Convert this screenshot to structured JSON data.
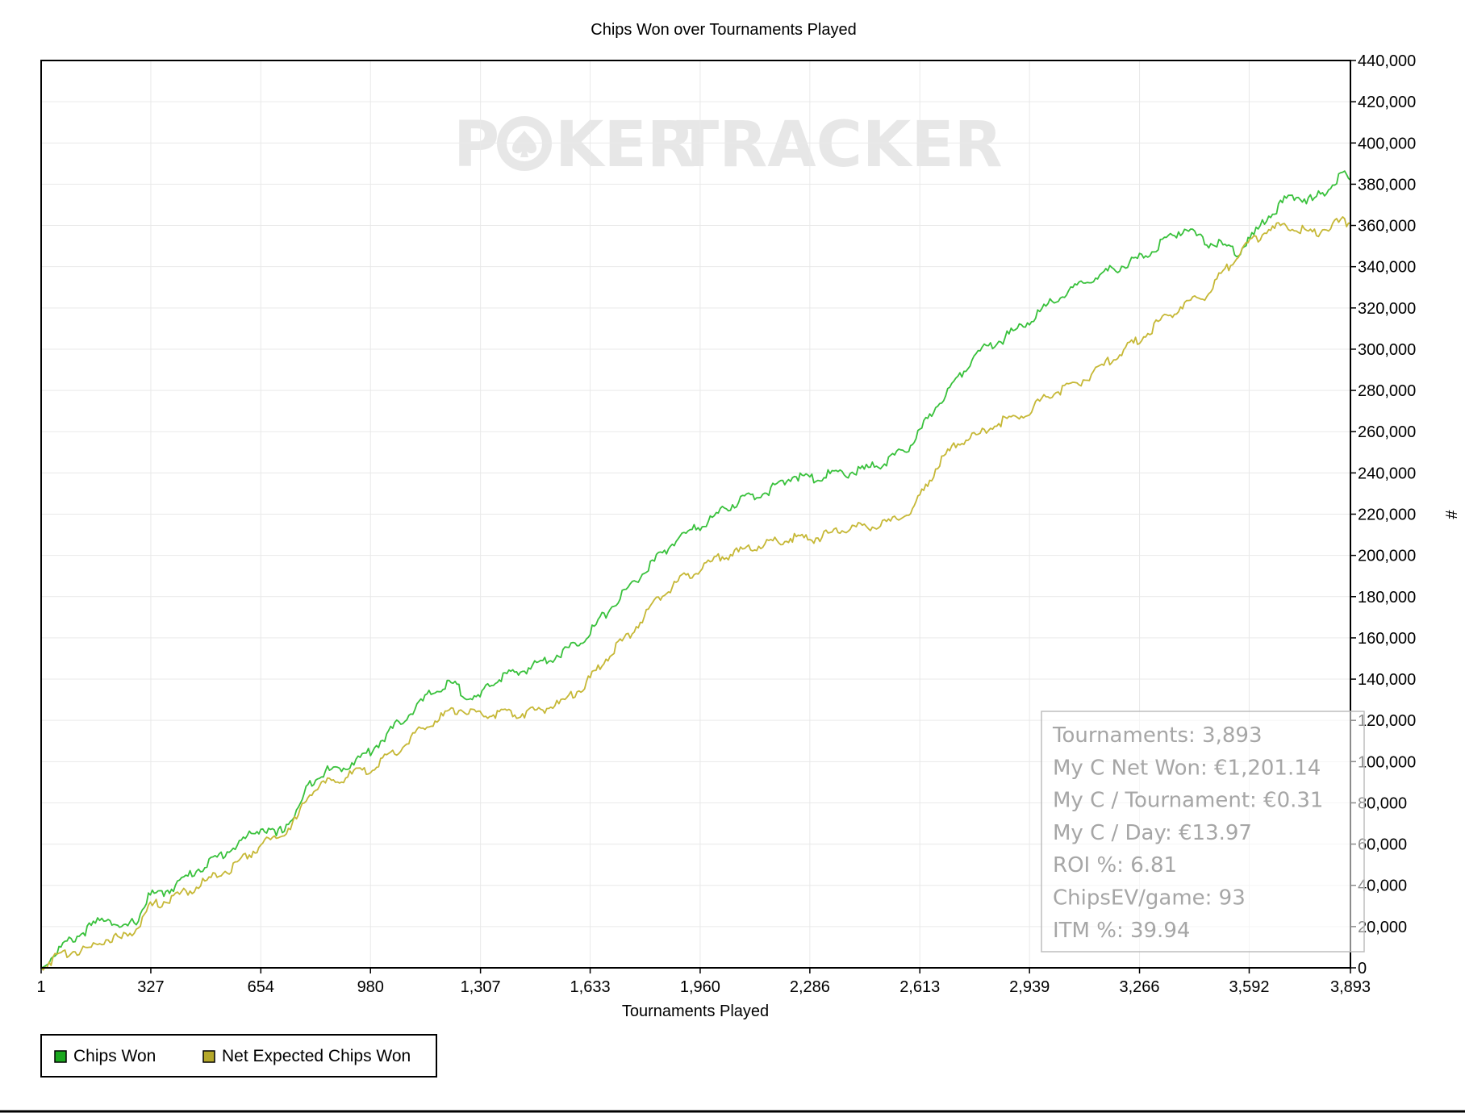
{
  "watermark": {
    "left": "P",
    "mid": "KER",
    "right": "TRACKER"
  },
  "chart_data": {
    "type": "line",
    "title": "Chips Won over Tournaments Played",
    "xlabel": "Tournaments Played",
    "ylabel": "#",
    "xlim": [
      1,
      3893
    ],
    "ylim": [
      0,
      440000
    ],
    "x_ticks": [
      1,
      327,
      654,
      980,
      1307,
      1633,
      1960,
      2286,
      2613,
      2939,
      3266,
      3592,
      3893
    ],
    "x_tick_labels": [
      "1",
      "327",
      "654",
      "980",
      "1,307",
      "1,633",
      "1,960",
      "2,286",
      "2,613",
      "2,939",
      "3,266",
      "3,592",
      "3,893"
    ],
    "y_ticks": [
      0,
      20000,
      40000,
      60000,
      80000,
      100000,
      120000,
      140000,
      160000,
      180000,
      200000,
      220000,
      240000,
      260000,
      280000,
      300000,
      320000,
      340000,
      360000,
      380000,
      400000,
      420000,
      440000
    ],
    "y_tick_labels": [
      "0",
      "20,000",
      "40,000",
      "60,000",
      "80,000",
      "100,000",
      "120,000",
      "140,000",
      "160,000",
      "180,000",
      "200,000",
      "220,000",
      "240,000",
      "260,000",
      "280,000",
      "300,000",
      "320,000",
      "340,000",
      "360,000",
      "380,000",
      "400,000",
      "420,000",
      "440,000"
    ],
    "grid": true,
    "legend_position": "bottom-left",
    "series": [
      {
        "name": "Chips Won",
        "color": "#39c13c",
        "x": [
          1,
          60,
          150,
          200,
          240,
          290,
          320,
          360,
          400,
          450,
          500,
          560,
          620,
          654,
          700,
          760,
          800,
          840,
          900,
          980,
          1040,
          1100,
          1160,
          1220,
          1260,
          1300,
          1340,
          1380,
          1420,
          1480,
          1540,
          1600,
          1633,
          1680,
          1740,
          1800,
          1860,
          1900,
          1960,
          2020,
          2080,
          2140,
          2200,
          2240,
          2286,
          2340,
          2400,
          2460,
          2520,
          2580,
          2613,
          2660,
          2720,
          2780,
          2860,
          2939,
          3000,
          3080,
          3160,
          3266,
          3340,
          3400,
          3460,
          3520,
          3560,
          3600,
          3650,
          3720,
          3780,
          3840,
          3870,
          3893
        ],
        "y": [
          0,
          10000,
          20000,
          25000,
          18000,
          24000,
          35000,
          36000,
          40000,
          46000,
          51000,
          57000,
          64000,
          68000,
          64000,
          75000,
          90000,
          95000,
          97000,
          105000,
          115000,
          124000,
          133000,
          138000,
          133000,
          130000,
          138000,
          142000,
          143000,
          148000,
          152000,
          158000,
          163000,
          172000,
          183000,
          193000,
          203000,
          209000,
          214000,
          221000,
          227000,
          230000,
          234000,
          239000,
          237000,
          239000,
          240000,
          242000,
          246000,
          252000,
          260000,
          272000,
          285000,
          298000,
          305000,
          314000,
          322000,
          330000,
          337000,
          344000,
          352000,
          359000,
          352000,
          350000,
          347000,
          354000,
          365000,
          375000,
          372000,
          380000,
          385000,
          382000
        ]
      },
      {
        "name": "Net Expected Chips Won",
        "color": "#c6b836",
        "x": [
          1,
          60,
          150,
          200,
          240,
          290,
          320,
          360,
          400,
          450,
          500,
          560,
          620,
          654,
          700,
          760,
          800,
          840,
          900,
          980,
          1040,
          1100,
          1160,
          1220,
          1260,
          1300,
          1340,
          1380,
          1420,
          1480,
          1540,
          1600,
          1633,
          1680,
          1740,
          1800,
          1860,
          1900,
          1960,
          2020,
          2080,
          2140,
          2200,
          2240,
          2286,
          2340,
          2400,
          2460,
          2520,
          2580,
          2613,
          2660,
          2720,
          2780,
          2860,
          2939,
          3000,
          3080,
          3160,
          3266,
          3340,
          3400,
          3460,
          3520,
          3560,
          3600,
          3650,
          3720,
          3780,
          3840,
          3870,
          3893
        ],
        "y": [
          0,
          7000,
          10000,
          15000,
          14000,
          20000,
          29000,
          32000,
          34000,
          38000,
          43000,
          48000,
          55000,
          60000,
          63000,
          72000,
          85000,
          89000,
          92000,
          97000,
          103000,
          111000,
          119000,
          124000,
          126000,
          122000,
          123000,
          124000,
          123000,
          125000,
          128000,
          135000,
          140000,
          150000,
          160000,
          172000,
          183000,
          188000,
          193000,
          199000,
          202000,
          205000,
          207000,
          209000,
          208000,
          210000,
          213000,
          214000,
          216000,
          220000,
          228000,
          242000,
          254000,
          258000,
          265000,
          270000,
          278000,
          283000,
          292000,
          305000,
          315000,
          322000,
          326000,
          338000,
          346000,
          352000,
          358000,
          360000,
          356000,
          360000,
          362000,
          361000
        ]
      }
    ],
    "stats": [
      "Tournaments: 3,893",
      "My C Net Won: €1,201.14",
      "My C / Tournament: €0.31",
      "My C / Day: €13.97",
      "ROI %: 6.81",
      "ChipsEV/game: 93",
      "ITM %: 39.94"
    ]
  }
}
